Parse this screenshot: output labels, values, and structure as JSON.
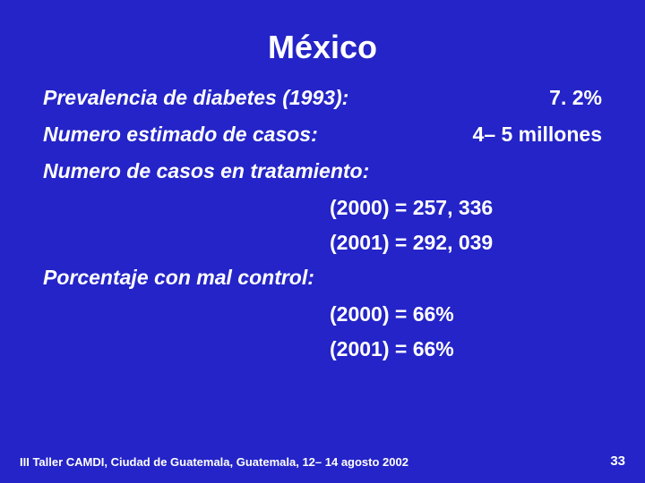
{
  "title": "México",
  "rows": [
    {
      "label": "Prevalencia de diabetes (1993):",
      "value": "7. 2%"
    },
    {
      "label": "Numero estimado de casos:",
      "value": "4– 5 millones"
    }
  ],
  "treatment": {
    "header": "Numero de casos en tratamiento:",
    "lines": [
      "(2000) = 257, 336",
      "(2001) = 292, 039"
    ]
  },
  "control": {
    "header": "Porcentaje con mal control:",
    "lines": [
      "(2000) = 66%",
      "(2001) = 66%"
    ]
  },
  "footer": "III Taller CAMDI, Ciudad de Guatemala, Guatemala, 12– 14 agosto 2002",
  "page": "33",
  "colors": {
    "background": "#2424c8",
    "text": "#ffffff"
  }
}
